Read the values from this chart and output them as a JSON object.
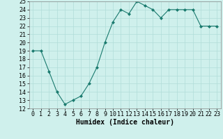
{
  "x": [
    0,
    1,
    2,
    3,
    4,
    5,
    6,
    7,
    8,
    9,
    10,
    11,
    12,
    13,
    14,
    15,
    16,
    17,
    18,
    19,
    20,
    21,
    22,
    23
  ],
  "y": [
    19,
    19,
    16.5,
    14,
    12.5,
    13,
    13.5,
    15,
    17,
    20,
    22.5,
    24,
    23.5,
    25,
    24.5,
    24,
    23,
    24,
    24,
    24,
    24,
    22,
    22,
    22
  ],
  "line_color": "#1a7a6e",
  "marker": "D",
  "marker_size": 2,
  "bg_color": "#cff0ec",
  "grid_color": "#b0ddd8",
  "xlabel": "Humidex (Indice chaleur)",
  "xlabel_fontsize": 7,
  "tick_fontsize": 6,
  "ylim": [
    12,
    25
  ],
  "xlim": [
    -0.5,
    23.5
  ],
  "yticks": [
    12,
    13,
    14,
    15,
    16,
    17,
    18,
    19,
    20,
    21,
    22,
    23,
    24,
    25
  ],
  "xticks": [
    0,
    1,
    2,
    3,
    4,
    5,
    6,
    7,
    8,
    9,
    10,
    11,
    12,
    13,
    14,
    15,
    16,
    17,
    18,
    19,
    20,
    21,
    22,
    23
  ]
}
